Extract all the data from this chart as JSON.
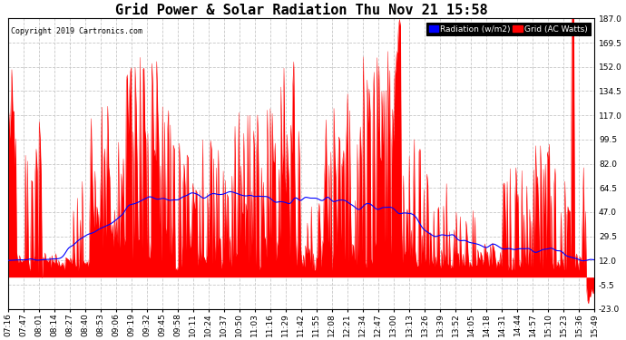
{
  "title": "Grid Power & Solar Radiation Thu Nov 21 15:58",
  "copyright": "Copyright 2019 Cartronics.com",
  "legend_labels": [
    "Radiation (w/m2)",
    "Grid (AC Watts)"
  ],
  "legend_colors": [
    "blue",
    "red"
  ],
  "y_ticks": [
    187.0,
    169.5,
    152.0,
    134.5,
    117.0,
    99.5,
    82.0,
    64.5,
    47.0,
    29.5,
    12.0,
    -5.5,
    -23.0
  ],
  "y_min": -23.0,
  "y_max": 187.0,
  "background_color": "#ffffff",
  "plot_bg_color": "#ffffff",
  "grid_color": "#c8c8c8",
  "bar_color": "red",
  "line_color": "blue",
  "title_fontsize": 11,
  "tick_fontsize": 6.5,
  "x_tick_labels": [
    "07:16",
    "07:47",
    "08:01",
    "08:14",
    "08:27",
    "08:40",
    "08:53",
    "09:06",
    "09:19",
    "09:32",
    "09:45",
    "09:58",
    "10:11",
    "10:24",
    "10:37",
    "10:50",
    "11:03",
    "11:16",
    "11:29",
    "11:42",
    "11:55",
    "12:08",
    "12:21",
    "12:34",
    "12:47",
    "13:00",
    "13:13",
    "13:26",
    "13:39",
    "13:52",
    "14:05",
    "14:18",
    "14:31",
    "14:44",
    "14:57",
    "15:10",
    "15:23",
    "15:36",
    "15:49"
  ]
}
